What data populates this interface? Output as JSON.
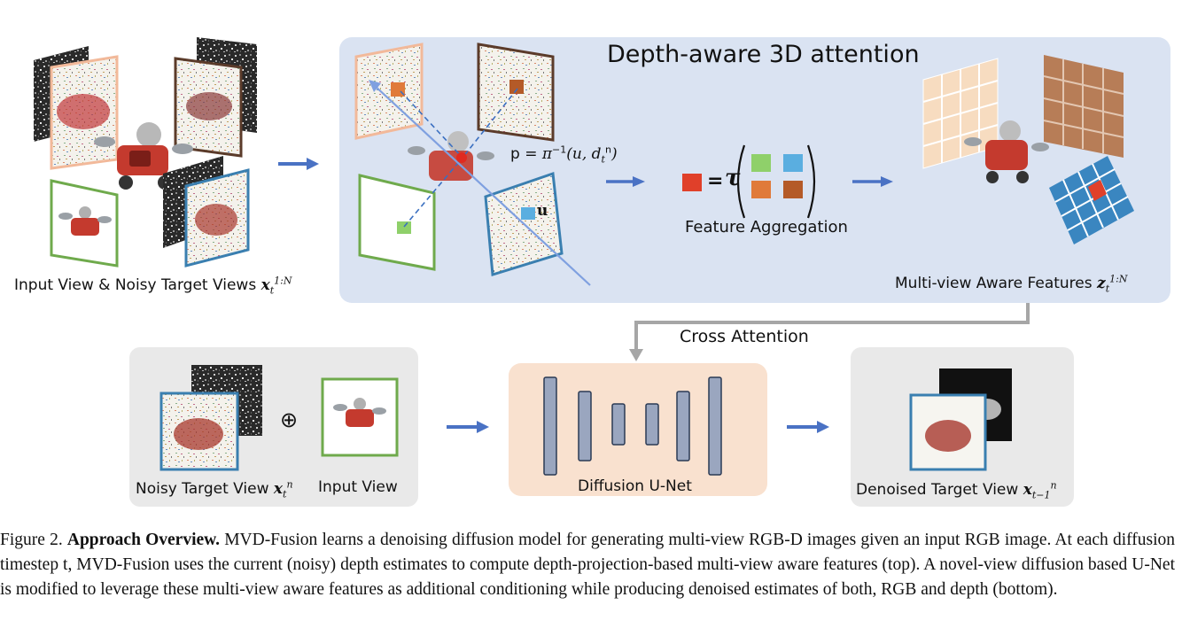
{
  "top_panel": {
    "title": "Depth-aware 3D attention",
    "point_label": "p = ",
    "u_label": "u",
    "aggregation_label": "Feature Aggregation",
    "aggregation_eq": "=",
    "tau_symbol": "τ",
    "features_label": "Multi-view Aware Features "
  },
  "left_inputs": {
    "label": "Input View & Noisy Target Views "
  },
  "cross_attention_label": "Cross Attention",
  "bottom_left": {
    "noisy_label": "Noisy Target View ",
    "oplus": "⊕",
    "input_label": "Input View"
  },
  "unet": {
    "label": "Diffusion U-Net"
  },
  "bottom_right": {
    "label": "Denoised Target View "
  },
  "caption": {
    "figure_number": "Figure 2.",
    "title": "Approach Overview.",
    "body": "MVD-Fusion learns a denoising diffusion model for generating multi-view RGB-D images given an input RGB image. At each diffusion timestep t, MVD-Fusion uses the current (noisy) depth estimates to compute depth-projection-based multi-view aware features (top). A novel-view diffusion based U-Net is modified to leverage these multi-view aware features as additional conditioning while producing denoised estimates of both, RGB and depth (bottom)."
  },
  "colors": {
    "panel_blue": "#dae3f2",
    "panel_gray": "#e9e9e9",
    "unet_peach": "#f9e1cf",
    "arrow_blue": "#4a72c4",
    "frame_peach": "#f2b99a",
    "frame_brown": "#5b3b2a",
    "frame_green": "#6faa4c",
    "frame_blue": "#3a7fb0",
    "cell_green": "#8fd06a",
    "cell_blue": "#5aaee0",
    "cell_orange": "#e07a3a",
    "cell_brown": "#b45a28",
    "cell_red": "#e0402a",
    "unet_bar": "#9aa6bf"
  }
}
